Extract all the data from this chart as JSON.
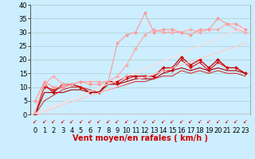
{
  "title": "",
  "xlabel": "Vent moyen/en rafales ( km/h )",
  "bg_color": "#cceeff",
  "grid_color": "#aacccc",
  "xlim": [
    -0.5,
    23.5
  ],
  "ylim": [
    0,
    40
  ],
  "yticks": [
    0,
    5,
    10,
    15,
    20,
    25,
    30,
    35,
    40
  ],
  "xticks": [
    0,
    1,
    2,
    3,
    4,
    5,
    6,
    7,
    8,
    9,
    10,
    11,
    12,
    13,
    14,
    15,
    16,
    17,
    18,
    19,
    20,
    21,
    22,
    23
  ],
  "lines": [
    {
      "x": [
        0,
        1,
        2,
        3,
        4,
        5,
        6,
        7,
        8,
        9,
        10,
        11,
        12,
        13,
        14,
        15,
        16,
        17,
        18,
        19,
        20,
        21,
        22,
        23
      ],
      "y": [
        0,
        11,
        8,
        11,
        11,
        10,
        8,
        8,
        12,
        12,
        14,
        14,
        14,
        14,
        17,
        17,
        21,
        18,
        20,
        17,
        20,
        17,
        17,
        15
      ],
      "color": "#cc0000",
      "marker": "D",
      "markersize": 1.8,
      "linewidth": 0.9
    },
    {
      "x": [
        0,
        1,
        2,
        3,
        4,
        5,
        6,
        7,
        8,
        9,
        10,
        11,
        12,
        13,
        14,
        15,
        16,
        17,
        18,
        19,
        20,
        21,
        22,
        23
      ],
      "y": [
        0,
        10,
        9,
        10,
        11,
        10,
        8,
        8,
        12,
        11,
        13,
        14,
        14,
        14,
        16,
        16,
        20,
        17,
        19,
        16,
        19,
        17,
        17,
        15
      ],
      "color": "#dd1111",
      "marker": "+",
      "markersize": 3.0,
      "linewidth": 0.8
    },
    {
      "x": [
        0,
        1,
        2,
        3,
        4,
        5,
        6,
        7,
        8,
        9,
        10,
        11,
        12,
        13,
        14,
        15,
        16,
        17,
        18,
        19,
        20,
        21,
        22,
        23
      ],
      "y": [
        0,
        8,
        8,
        8,
        9,
        9,
        8,
        8,
        11,
        11,
        12,
        13,
        13,
        13,
        15,
        16,
        17,
        16,
        17,
        16,
        17,
        16,
        16,
        15
      ],
      "color": "#aa0000",
      "marker": null,
      "linewidth": 0.8
    },
    {
      "x": [
        0,
        1,
        2,
        3,
        4,
        5,
        6,
        7,
        8,
        9,
        10,
        11,
        12,
        13,
        14,
        15,
        16,
        17,
        18,
        19,
        20,
        21,
        22,
        23
      ],
      "y": [
        0,
        5,
        7,
        9,
        10,
        10,
        9,
        8,
        9,
        10,
        11,
        12,
        12,
        13,
        14,
        14,
        16,
        15,
        16,
        15,
        16,
        15,
        15,
        14
      ],
      "color": "#cc2222",
      "marker": null,
      "linewidth": 0.7
    },
    {
      "x": [
        0,
        1,
        2,
        3,
        4,
        5,
        6,
        7,
        8,
        9,
        10,
        11,
        12,
        13,
        14,
        15,
        16,
        17,
        18,
        19,
        20,
        21,
        22,
        23
      ],
      "y": [
        1,
        11,
        14,
        11,
        11,
        12,
        12,
        12,
        12,
        14,
        18,
        24,
        29,
        31,
        30,
        30,
        30,
        31,
        30,
        31,
        31,
        33,
        31,
        30
      ],
      "color": "#ffaaaa",
      "marker": "D",
      "markersize": 1.8,
      "linewidth": 0.9
    },
    {
      "x": [
        0,
        1,
        2,
        3,
        4,
        5,
        6,
        7,
        8,
        9,
        10,
        11,
        12,
        13,
        14,
        15,
        16,
        17,
        18,
        19,
        20,
        21,
        22,
        23
      ],
      "y": [
        5,
        12,
        10,
        10,
        11,
        12,
        11,
        11,
        12,
        26,
        29,
        30,
        37,
        30,
        31,
        31,
        30,
        29,
        31,
        31,
        35,
        33,
        33,
        31
      ],
      "color": "#ff9999",
      "marker": "D",
      "markersize": 1.8,
      "linewidth": 0.8
    },
    {
      "x": [
        0,
        23
      ],
      "y": [
        0,
        26
      ],
      "color": "#ffcccc",
      "marker": null,
      "linewidth": 0.9
    },
    {
      "x": [
        0,
        23
      ],
      "y": [
        0,
        32
      ],
      "color": "#ffdddd",
      "marker": null,
      "linewidth": 0.9
    }
  ],
  "arrow_color": "#cc0000",
  "xlabel_color": "#cc0000",
  "xlabel_fontsize": 7,
  "tick_fontsize": 6,
  "ytick_fontsize": 6
}
